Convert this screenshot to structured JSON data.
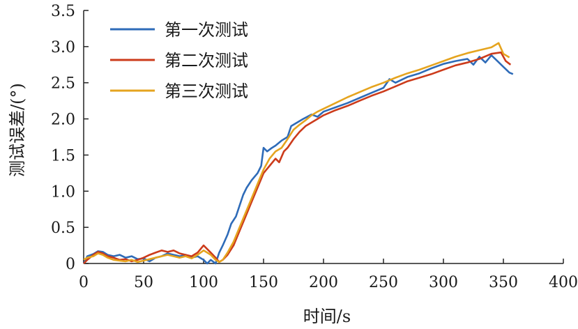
{
  "chart_data": {
    "type": "line",
    "xlabel": "时间/s",
    "ylabel": "测试误差/(°)",
    "xlim": [
      0,
      400
    ],
    "ylim": [
      0,
      3.5
    ],
    "xticks": [
      "0",
      "50",
      "100",
      "150",
      "200",
      "250",
      "300",
      "350",
      "400"
    ],
    "yticks": [
      "0",
      "0.5",
      "1.0",
      "1.5",
      "2.0",
      "2.5",
      "3.0",
      "3.5"
    ],
    "grid": false,
    "legend_position": "top-left",
    "series": [
      {
        "name": "第一次测试",
        "color": "#2e6bb8",
        "points": [
          [
            0,
            0
          ],
          [
            3,
            0.1
          ],
          [
            8,
            0.13
          ],
          [
            12,
            0.17
          ],
          [
            16,
            0.16
          ],
          [
            20,
            0.12
          ],
          [
            25,
            0.1
          ],
          [
            30,
            0.12
          ],
          [
            35,
            0.08
          ],
          [
            40,
            0.1
          ],
          [
            45,
            0.06
          ],
          [
            50,
            0.07
          ],
          [
            55,
            0.03
          ],
          [
            60,
            0.08
          ],
          [
            65,
            0.1
          ],
          [
            70,
            0.14
          ],
          [
            75,
            0.12
          ],
          [
            80,
            0.1
          ],
          [
            85,
            0.12
          ],
          [
            90,
            0.08
          ],
          [
            95,
            0.1
          ],
          [
            100,
            0.05
          ],
          [
            103,
            0.0
          ],
          [
            106,
            0.05
          ],
          [
            110,
            0.0
          ],
          [
            113,
            0.15
          ],
          [
            116,
            0.25
          ],
          [
            120,
            0.4
          ],
          [
            123,
            0.55
          ],
          [
            127,
            0.65
          ],
          [
            130,
            0.8
          ],
          [
            133,
            0.95
          ],
          [
            136,
            1.05
          ],
          [
            140,
            1.15
          ],
          [
            145,
            1.25
          ],
          [
            148,
            1.35
          ],
          [
            150,
            1.6
          ],
          [
            153,
            1.55
          ],
          [
            157,
            1.6
          ],
          [
            160,
            1.63
          ],
          [
            165,
            1.7
          ],
          [
            170,
            1.75
          ],
          [
            173,
            1.9
          ],
          [
            178,
            1.95
          ],
          [
            183,
            2.0
          ],
          [
            190,
            2.06
          ],
          [
            195,
            2.03
          ],
          [
            200,
            2.1
          ],
          [
            210,
            2.16
          ],
          [
            220,
            2.22
          ],
          [
            230,
            2.29
          ],
          [
            240,
            2.36
          ],
          [
            250,
            2.43
          ],
          [
            255,
            2.55
          ],
          [
            260,
            2.5
          ],
          [
            270,
            2.58
          ],
          [
            280,
            2.63
          ],
          [
            290,
            2.7
          ],
          [
            300,
            2.76
          ],
          [
            310,
            2.8
          ],
          [
            320,
            2.83
          ],
          [
            325,
            2.75
          ],
          [
            330,
            2.86
          ],
          [
            335,
            2.78
          ],
          [
            340,
            2.88
          ],
          [
            345,
            2.8
          ],
          [
            350,
            2.72
          ],
          [
            355,
            2.64
          ],
          [
            358,
            2.62
          ]
        ]
      },
      {
        "name": "第二次测试",
        "color": "#cc3b1b",
        "points": [
          [
            0,
            0
          ],
          [
            3,
            0.05
          ],
          [
            8,
            0.12
          ],
          [
            12,
            0.16
          ],
          [
            16,
            0.14
          ],
          [
            20,
            0.1
          ],
          [
            25,
            0.08
          ],
          [
            30,
            0.05
          ],
          [
            35,
            0.06
          ],
          [
            40,
            0.03
          ],
          [
            45,
            0.05
          ],
          [
            50,
            0.08
          ],
          [
            55,
            0.12
          ],
          [
            60,
            0.15
          ],
          [
            65,
            0.18
          ],
          [
            70,
            0.16
          ],
          [
            75,
            0.18
          ],
          [
            80,
            0.14
          ],
          [
            85,
            0.12
          ],
          [
            90,
            0.1
          ],
          [
            95,
            0.15
          ],
          [
            100,
            0.25
          ],
          [
            103,
            0.2
          ],
          [
            106,
            0.15
          ],
          [
            110,
            0.08
          ],
          [
            113,
            0.02
          ],
          [
            116,
            0.05
          ],
          [
            120,
            0.12
          ],
          [
            125,
            0.25
          ],
          [
            130,
            0.45
          ],
          [
            135,
            0.65
          ],
          [
            140,
            0.85
          ],
          [
            145,
            1.05
          ],
          [
            150,
            1.25
          ],
          [
            155,
            1.35
          ],
          [
            160,
            1.45
          ],
          [
            163,
            1.4
          ],
          [
            167,
            1.55
          ],
          [
            170,
            1.6
          ],
          [
            175,
            1.72
          ],
          [
            180,
            1.82
          ],
          [
            185,
            1.9
          ],
          [
            190,
            1.95
          ],
          [
            195,
            2.0
          ],
          [
            200,
            2.05
          ],
          [
            210,
            2.12
          ],
          [
            220,
            2.18
          ],
          [
            230,
            2.25
          ],
          [
            240,
            2.32
          ],
          [
            250,
            2.38
          ],
          [
            260,
            2.45
          ],
          [
            270,
            2.52
          ],
          [
            280,
            2.57
          ],
          [
            290,
            2.62
          ],
          [
            300,
            2.68
          ],
          [
            310,
            2.74
          ],
          [
            320,
            2.78
          ],
          [
            330,
            2.83
          ],
          [
            340,
            2.9
          ],
          [
            348,
            2.92
          ],
          [
            352,
            2.8
          ],
          [
            356,
            2.75
          ]
        ]
      },
      {
        "name": "第三次测试",
        "color": "#e5a41f",
        "points": [
          [
            0,
            0.05
          ],
          [
            3,
            0.08
          ],
          [
            8,
            0.1
          ],
          [
            12,
            0.14
          ],
          [
            16,
            0.12
          ],
          [
            20,
            0.08
          ],
          [
            25,
            0.05
          ],
          [
            30,
            0.04
          ],
          [
            35,
            0.03
          ],
          [
            40,
            0.05
          ],
          [
            45,
            0.02
          ],
          [
            50,
            0.04
          ],
          [
            55,
            0.06
          ],
          [
            60,
            0.08
          ],
          [
            65,
            0.1
          ],
          [
            70,
            0.12
          ],
          [
            75,
            0.1
          ],
          [
            80,
            0.08
          ],
          [
            85,
            0.1
          ],
          [
            90,
            0.07
          ],
          [
            95,
            0.12
          ],
          [
            100,
            0.18
          ],
          [
            103,
            0.15
          ],
          [
            106,
            0.12
          ],
          [
            110,
            0.05
          ],
          [
            113,
            0.02
          ],
          [
            116,
            0.05
          ],
          [
            120,
            0.15
          ],
          [
            125,
            0.3
          ],
          [
            130,
            0.5
          ],
          [
            135,
            0.7
          ],
          [
            140,
            0.9
          ],
          [
            145,
            1.1
          ],
          [
            150,
            1.3
          ],
          [
            155,
            1.45
          ],
          [
            160,
            1.55
          ],
          [
            165,
            1.6
          ],
          [
            170,
            1.72
          ],
          [
            175,
            1.85
          ],
          [
            180,
            1.92
          ],
          [
            185,
            1.98
          ],
          [
            190,
            2.05
          ],
          [
            195,
            2.1
          ],
          [
            200,
            2.14
          ],
          [
            210,
            2.22
          ],
          [
            220,
            2.3
          ],
          [
            230,
            2.37
          ],
          [
            240,
            2.44
          ],
          [
            250,
            2.5
          ],
          [
            260,
            2.57
          ],
          [
            270,
            2.63
          ],
          [
            280,
            2.68
          ],
          [
            290,
            2.74
          ],
          [
            300,
            2.8
          ],
          [
            310,
            2.86
          ],
          [
            320,
            2.91
          ],
          [
            330,
            2.95
          ],
          [
            340,
            2.99
          ],
          [
            346,
            3.05
          ],
          [
            350,
            2.9
          ],
          [
            355,
            2.85
          ]
        ]
      }
    ]
  }
}
